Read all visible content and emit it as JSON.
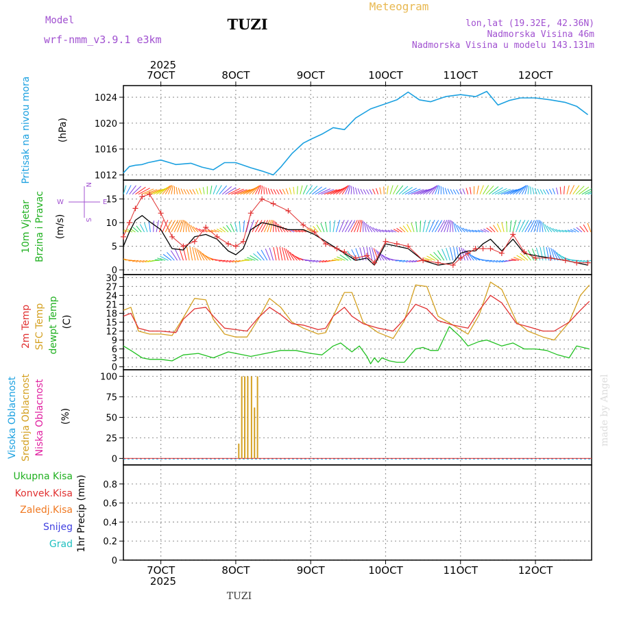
{
  "header": {
    "model_label": "Model",
    "model_name": "wrf-nmm_v3.9.1 e3km",
    "station": "TUZI",
    "product": "Meteogram",
    "lonlat": "lon,lat (19.32E, 42.36N)",
    "elevation": "Nadmorska Visina 46m",
    "model_elevation": "Nadmorska Visina u modelu 143.131m",
    "year_top": "2025",
    "year_bottom": "2025",
    "footer_station": "TUZI",
    "watermark": "made by Angel"
  },
  "colors": {
    "pressure": "#1aa0e0",
    "wind_speed_model": "#000000",
    "wind_speed_cross": "#e03030",
    "temp2m": "#e03030",
    "sfc_temp": "#d4a020",
    "dewpt": "#20c020",
    "cloud_mid": "#d4a020",
    "compass": "#a050d0",
    "magenta": "#a050d0",
    "label_green": "#20b020",
    "label_red": "#e03030",
    "label_orange": "#f07820",
    "label_blue": "#4040e0",
    "label_cyan": "#20c0c0"
  },
  "compass": {
    "w": "W",
    "e": "E",
    "n": "N",
    "s": "S"
  },
  "chart_data": [
    {
      "type": "line",
      "panel": "pressure",
      "label": "Pritisak na nivou mora",
      "ylabel": "(hPa)",
      "ylim": [
        1011.2,
        1025.8
      ],
      "yticks": [
        1012,
        1016,
        1020,
        1024
      ],
      "x_ticks": [
        "7OCT",
        "8OCT",
        "9OCT",
        "10OCT",
        "11OCT",
        "12OCT"
      ],
      "x_tick_days": [
        7,
        8,
        9,
        10,
        11,
        12
      ],
      "xlim_days": [
        6.5,
        12.75
      ],
      "series": [
        {
          "name": "MSLP",
          "x": [
            6.5,
            6.58,
            6.66,
            6.75,
            6.83,
            7.0,
            7.2,
            7.4,
            7.55,
            7.7,
            7.85,
            8.0,
            8.2,
            8.35,
            8.5,
            8.6,
            8.75,
            8.9,
            9.0,
            9.15,
            9.3,
            9.45,
            9.6,
            9.8,
            10.0,
            10.15,
            10.3,
            10.45,
            10.6,
            10.8,
            11.0,
            11.2,
            11.35,
            11.5,
            11.65,
            11.8,
            12.0,
            12.2,
            12.4,
            12.55,
            12.7
          ],
          "values": [
            1012.3,
            1013.3,
            1013.5,
            1013.6,
            1013.9,
            1014.3,
            1013.6,
            1013.8,
            1013.2,
            1012.8,
            1013.9,
            1013.9,
            1013.1,
            1012.6,
            1012.0,
            1013.2,
            1015.3,
            1016.9,
            1017.5,
            1018.3,
            1019.3,
            1019.0,
            1020.8,
            1022.2,
            1023.0,
            1023.6,
            1024.8,
            1023.6,
            1023.3,
            1024.1,
            1024.4,
            1024.1,
            1024.9,
            1022.8,
            1023.5,
            1023.9,
            1023.9,
            1023.6,
            1023.2,
            1022.6,
            1021.3
          ]
        }
      ]
    },
    {
      "type": "line",
      "panel": "wind",
      "label_line1": "10m Vjetar",
      "label_line2": "Brzina i Pravac",
      "ylabel": "(m/s)",
      "ylim": [
        -1,
        19
      ],
      "yticks": [
        0,
        5,
        10,
        15
      ],
      "series": [
        {
          "name": "wind speed (model)",
          "x": [
            6.5,
            6.58,
            6.66,
            6.75,
            6.85,
            7.0,
            7.15,
            7.3,
            7.45,
            7.6,
            7.75,
            7.9,
            8.0,
            8.1,
            8.2,
            8.35,
            8.5,
            8.7,
            8.9,
            9.05,
            9.2,
            9.35,
            9.45,
            9.6,
            9.75,
            9.85,
            10.0,
            10.15,
            10.3,
            10.5,
            10.7,
            10.9,
            11.0,
            11.1,
            11.2,
            11.3,
            11.4,
            11.55,
            11.7,
            11.85,
            12.0,
            12.2,
            12.4,
            12.55,
            12.7
          ],
          "values": [
            5.0,
            8.0,
            10.5,
            11.5,
            10.2,
            8.5,
            4.5,
            4.2,
            7.0,
            7.5,
            6.5,
            4.0,
            3.2,
            4.5,
            8.5,
            10.0,
            9.5,
            8.5,
            8.5,
            7.5,
            6.0,
            4.5,
            3.5,
            2.0,
            2.5,
            1.0,
            5.5,
            5.0,
            4.5,
            2.0,
            1.0,
            1.5,
            3.5,
            4.0,
            4.0,
            5.5,
            6.5,
            4.0,
            6.5,
            3.5,
            3.0,
            2.5,
            2.0,
            1.5,
            1.0
          ]
        },
        {
          "name": "wind speed (crosses)",
          "x": [
            6.5,
            6.58,
            6.66,
            6.75,
            6.85,
            7.0,
            7.15,
            7.3,
            7.45,
            7.6,
            7.75,
            7.9,
            8.0,
            8.1,
            8.2,
            8.35,
            8.5,
            8.7,
            8.9,
            9.05,
            9.2,
            9.35,
            9.45,
            9.6,
            9.75,
            9.85,
            10.0,
            10.15,
            10.3,
            10.5,
            10.7,
            10.9,
            11.0,
            11.1,
            11.2,
            11.3,
            11.4,
            11.55,
            11.7,
            11.85,
            12.0,
            12.2,
            12.4,
            12.55,
            12.7
          ],
          "values": [
            7.0,
            10.0,
            13.0,
            15.5,
            16.0,
            12.0,
            7.0,
            5.0,
            6.0,
            9.0,
            7.0,
            5.5,
            5.0,
            6.0,
            12.0,
            15.0,
            14.0,
            12.5,
            9.5,
            8.0,
            5.5,
            4.5,
            3.8,
            2.5,
            3.0,
            1.5,
            6.0,
            5.5,
            5.0,
            2.0,
            1.5,
            1.0,
            2.5,
            3.5,
            4.5,
            4.5,
            4.5,
            3.5,
            7.5,
            3.8,
            2.5,
            2.5,
            2.0,
            1.5,
            1.5
          ]
        }
      ],
      "barb_rows": [
        2,
        8,
        16
      ]
    },
    {
      "type": "line",
      "panel": "temperature",
      "label_2m": "2m Temp",
      "label_sfc": "SFC Temp",
      "label_dewpt": "dewpt Temp",
      "ylabel": "(C)",
      "ylim": [
        -1,
        31
      ],
      "yticks": [
        0,
        3,
        6,
        9,
        12,
        15,
        18,
        21,
        24,
        27,
        30
      ],
      "series": [
        {
          "name": "2m Temp",
          "x": [
            6.5,
            6.6,
            6.7,
            6.85,
            7.0,
            7.2,
            7.3,
            7.45,
            7.6,
            7.7,
            7.85,
            8.0,
            8.15,
            8.3,
            8.45,
            8.6,
            8.75,
            8.9,
            9.1,
            9.2,
            9.3,
            9.45,
            9.55,
            9.7,
            9.9,
            10.1,
            10.25,
            10.4,
            10.55,
            10.7,
            10.9,
            11.1,
            11.25,
            11.4,
            11.55,
            11.75,
            11.9,
            12.1,
            12.25,
            12.45,
            12.6,
            12.72
          ],
          "values": [
            17.0,
            18.0,
            13.0,
            12.0,
            12.0,
            11.5,
            16.0,
            19.5,
            20.0,
            17.0,
            13.0,
            12.5,
            12.0,
            16.5,
            20.0,
            17.5,
            14.5,
            14.0,
            12.5,
            13.0,
            17.0,
            20.0,
            17.0,
            14.5,
            13.0,
            12.0,
            16.0,
            21.0,
            19.5,
            15.5,
            14.0,
            13.0,
            19.0,
            24.0,
            21.5,
            14.5,
            13.5,
            12.0,
            12.0,
            15.0,
            19.0,
            22.0
          ]
        },
        {
          "name": "SFC Temp",
          "x": [
            6.5,
            6.6,
            6.7,
            6.85,
            7.0,
            7.15,
            7.3,
            7.45,
            7.6,
            7.7,
            7.85,
            8.0,
            8.15,
            8.3,
            8.45,
            8.6,
            8.75,
            8.9,
            9.1,
            9.2,
            9.3,
            9.45,
            9.55,
            9.7,
            9.9,
            10.1,
            10.25,
            10.4,
            10.55,
            10.7,
            10.9,
            11.1,
            11.25,
            11.4,
            11.55,
            11.75,
            11.9,
            12.1,
            12.25,
            12.45,
            12.6,
            12.72
          ],
          "values": [
            19.0,
            20.0,
            12.0,
            11.0,
            11.0,
            10.5,
            16.5,
            23.0,
            22.5,
            16.0,
            11.0,
            10.0,
            10.0,
            16.0,
            23.0,
            20.0,
            15.0,
            13.0,
            11.0,
            11.5,
            17.0,
            25.0,
            25.0,
            15.0,
            11.5,
            9.5,
            15.5,
            27.5,
            27.0,
            17.0,
            14.0,
            11.0,
            17.5,
            28.5,
            26.0,
            15.0,
            12.0,
            10.0,
            9.0,
            15.0,
            24.0,
            27.5
          ]
        },
        {
          "name": "dewpt Temp",
          "x": [
            6.5,
            6.6,
            6.75,
            6.85,
            7.0,
            7.15,
            7.3,
            7.5,
            7.7,
            7.9,
            8.0,
            8.1,
            8.2,
            8.4,
            8.6,
            8.8,
            9.0,
            9.15,
            9.3,
            9.4,
            9.55,
            9.65,
            9.75,
            9.8,
            9.85,
            9.9,
            9.95,
            10.05,
            10.15,
            10.25,
            10.4,
            10.5,
            10.6,
            10.7,
            10.85,
            11.0,
            11.1,
            11.25,
            11.35,
            11.45,
            11.55,
            11.7,
            11.85,
            12.0,
            12.15,
            12.3,
            12.45,
            12.55,
            12.72
          ],
          "values": [
            7.0,
            5.5,
            3.0,
            2.5,
            2.5,
            2.0,
            4.0,
            4.5,
            3.0,
            5.0,
            4.5,
            4.0,
            3.5,
            4.5,
            5.5,
            5.5,
            4.5,
            4.0,
            7.0,
            8.0,
            5.0,
            7.0,
            3.5,
            1.0,
            3.0,
            1.5,
            3.0,
            2.0,
            1.5,
            1.5,
            6.0,
            6.5,
            5.5,
            5.5,
            13.5,
            10.0,
            7.0,
            8.5,
            9.0,
            8.0,
            7.0,
            8.0,
            6.0,
            6.0,
            5.5,
            4.0,
            3.0,
            7.0,
            6.0
          ]
        }
      ]
    },
    {
      "type": "bar",
      "panel": "clouds",
      "label_high": "Visoka Oblacnost",
      "label_mid": "Srednja Oblacnost",
      "label_low": "Niska Oblacnost",
      "ylabel": "(%)",
      "ylim": [
        -8,
        108
      ],
      "yticks": [
        0,
        25,
        50,
        75,
        100
      ],
      "series": [
        {
          "name": "Srednja Oblacnost",
          "x": [
            8.04,
            8.08,
            8.12,
            8.16,
            8.21,
            8.25,
            8.29
          ],
          "values": [
            18,
            100,
            100,
            100,
            100,
            62,
            100
          ]
        }
      ]
    },
    {
      "type": "bar",
      "panel": "precip",
      "label_total": "Ukupna Kisa",
      "label_conv": "Konvek.Kisa",
      "label_frz": "Zaledj.Kisa",
      "label_snow": "Snijeg",
      "label_grad": "Grad",
      "ylabel": "1hr Precip (mm)",
      "ylim": [
        0,
        1.0
      ],
      "yticks": [
        0,
        0.2,
        0.4,
        0.6,
        0.8
      ],
      "series": []
    }
  ]
}
